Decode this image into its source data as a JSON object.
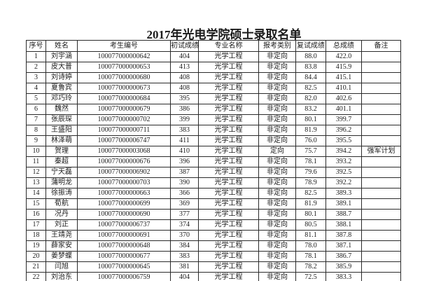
{
  "title": "2017年光电学院硕士录取名单",
  "colors": {
    "background": "#ffffff",
    "text": "#1c1c1c",
    "table_border": "#2b2b2b"
  },
  "table": {
    "columns": [
      "序号",
      "姓名",
      "考生编号",
      "初试成绩",
      "专业名称",
      "报考类别",
      "复试成绩",
      "总成绩",
      "备注"
    ],
    "rows": [
      [
        "1",
        "刘宇涵",
        "100077000000642",
        "404",
        "光学工程",
        "非定向",
        "88.0",
        "422.0",
        ""
      ],
      [
        "2",
        "皮大普",
        "100077000000653",
        "413",
        "光学工程",
        "非定向",
        "83.8",
        "415.9",
        ""
      ],
      [
        "3",
        "刘诗婷",
        "100077000000680",
        "408",
        "光学工程",
        "非定向",
        "84.4",
        "415.1",
        ""
      ],
      [
        "4",
        "夏鲁宾",
        "100077000000673",
        "408",
        "光学工程",
        "非定向",
        "82.5",
        "410.1",
        ""
      ],
      [
        "5",
        "邓巧玲",
        "100077000000684",
        "395",
        "光学工程",
        "非定向",
        "82.0",
        "402.6",
        ""
      ],
      [
        "6",
        "魏然",
        "100077000000679",
        "386",
        "光学工程",
        "非定向",
        "83.2",
        "401.1",
        ""
      ],
      [
        "7",
        "张辰琛",
        "100077000000702",
        "399",
        "光学工程",
        "非定向",
        "80.1",
        "399.7",
        ""
      ],
      [
        "8",
        "王盛阳",
        "100077000000711",
        "383",
        "光学工程",
        "非定向",
        "81.9",
        "396.2",
        ""
      ],
      [
        "9",
        "林泽萌",
        "100077000006747",
        "411",
        "光学工程",
        "非定向",
        "76.0",
        "395.5",
        ""
      ],
      [
        "10",
        "贺理",
        "100077000003068",
        "410",
        "光学工程",
        "定向",
        "75.7",
        "394.2",
        "强军计划"
      ],
      [
        "11",
        "秦超",
        "100077000000676",
        "396",
        "光学工程",
        "非定向",
        "78.1",
        "393.2",
        ""
      ],
      [
        "12",
        "宁天磊",
        "100077000006902",
        "387",
        "光学工程",
        "非定向",
        "79.6",
        "392.5",
        ""
      ],
      [
        "13",
        "蒲明龙",
        "100077000000703",
        "390",
        "光学工程",
        "非定向",
        "78.9",
        "392.2",
        ""
      ],
      [
        "14",
        "徐振涛",
        "100077000000663",
        "366",
        "光学工程",
        "非定向",
        "82.5",
        "389.3",
        ""
      ],
      [
        "15",
        "荀航",
        "100077000000699",
        "369",
        "光学工程",
        "非定向",
        "81.9",
        "389.1",
        ""
      ],
      [
        "16",
        "况丹",
        "100077000000690",
        "377",
        "光学工程",
        "非定向",
        "80.1",
        "388.7",
        ""
      ],
      [
        "17",
        "刘正",
        "100077000006737",
        "374",
        "光学工程",
        "非定向",
        "80.5",
        "388.1",
        ""
      ],
      [
        "18",
        "王靖尧",
        "100077000000691",
        "370",
        "光学工程",
        "非定向",
        "81.1",
        "387.8",
        ""
      ],
      [
        "19",
        "薛家安",
        "100077000000648",
        "384",
        "光学工程",
        "非定向",
        "78.0",
        "387.1",
        ""
      ],
      [
        "20",
        "姜梦蝶",
        "100077000000677",
        "383",
        "光学工程",
        "非定向",
        "78.1",
        "386.7",
        ""
      ],
      [
        "21",
        "闫旭",
        "100077000000645",
        "381",
        "光学工程",
        "非定向",
        "78.2",
        "385.9",
        ""
      ],
      [
        "22",
        "刘治东",
        "100077000006759",
        "404",
        "光学工程",
        "非定向",
        "72.5",
        "383.3",
        ""
      ]
    ]
  }
}
